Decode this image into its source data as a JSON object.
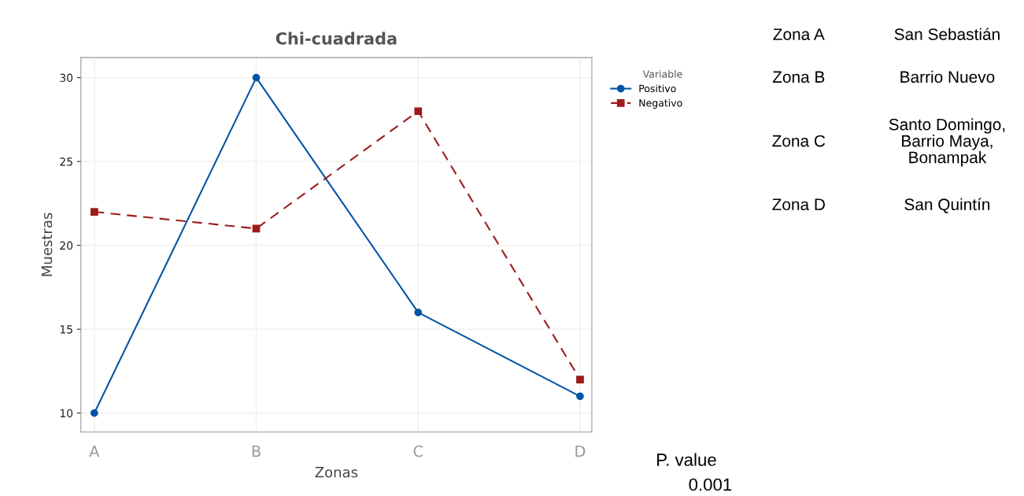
{
  "chart_data": {
    "type": "line",
    "title": "Chi-cuadrada",
    "xlabel": "Zonas",
    "ylabel": "Muestras",
    "legend_title": "Variable",
    "categories": [
      "A",
      "B",
      "C",
      "D"
    ],
    "series": [
      {
        "name": "Positivo",
        "color": "#0054a6",
        "values": [
          10,
          30,
          16,
          11
        ],
        "marker": "circle",
        "line_style": "solid"
      },
      {
        "name": "Negativo",
        "color": "#9e1b1b",
        "values": [
          22,
          21,
          28,
          12
        ],
        "marker": "square",
        "line_style": "dashed"
      }
    ],
    "ylim": [
      8.87,
      31.2
    ],
    "yticks": [
      10,
      15,
      20,
      25,
      30
    ],
    "grid": true,
    "legend": "top right",
    "annotations": [
      "Zona A",
      "San Sebastián",
      "Zona B",
      "Barrio Nuevo",
      "Zona C",
      "Santo Domingo,\nBarrio Maya,\nBonampak",
      "Zona D",
      "San Quintín",
      "P. value",
      "0.001"
    ]
  }
}
